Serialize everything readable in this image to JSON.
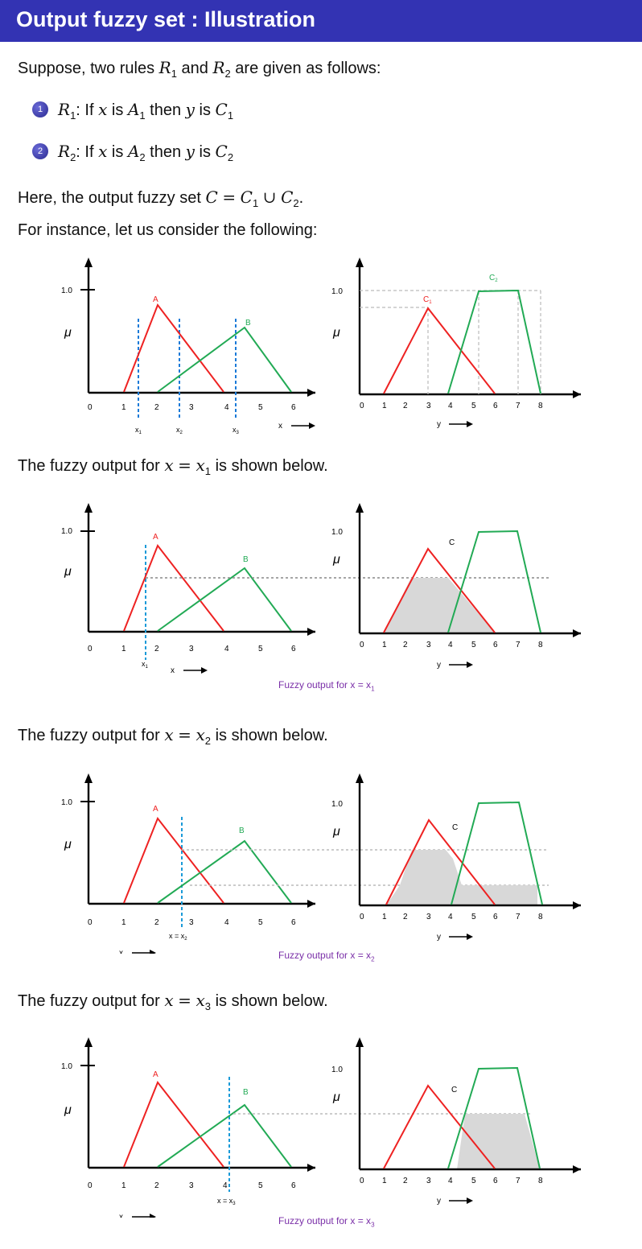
{
  "title": "Output fuzzy set : Illustration",
  "intro": "Suppose, two rules R1 and R2 are given as follows:",
  "rules": [
    {
      "num": "1",
      "rule": "R1: If x is A1 then y is C1"
    },
    {
      "num": "2",
      "rule": "R2: If x is A2 then y is C2"
    }
  ],
  "union_text": "Here, the output fuzzy set C = C1 ∪ C2.",
  "instance_text": "For instance, let us consider the following:",
  "section_x1": "The fuzzy output for x = x1 is shown below.",
  "section_x2": "The fuzzy output for x = x2 is shown below.",
  "section_x3": "The fuzzy output for x = x3 is shown below.",
  "caption_x1": "Fuzzy output for x = x1",
  "caption_x2": "Fuzzy output for x = x2",
  "caption_x3": "Fuzzy output for x = x3",
  "colors": {
    "A": "#ee2222",
    "B": "#22aa55",
    "cut": "#1a9ad8",
    "shade": "#d8d8d8",
    "guide": "#aaaaaa",
    "caption": "#7a2fa8",
    "titlebar": "#3333b3"
  },
  "chart_data": [
    {
      "type": "line",
      "panel": "input-sets",
      "x_ticks": [
        "0",
        "1",
        "2",
        "3",
        "4",
        "5",
        "6"
      ],
      "y_tick": "1.0",
      "ylabel": "μ",
      "xlabel": "x",
      "series": [
        {
          "name": "A",
          "x": [
            1,
            2,
            4
          ],
          "y": [
            0,
            0.8,
            0
          ]
        },
        {
          "name": "B",
          "x": [
            2,
            4.6,
            6
          ],
          "y": [
            0,
            0.6,
            0
          ]
        }
      ],
      "markers": [
        {
          "label": "x1",
          "x": 1.5
        },
        {
          "label": "x2",
          "x": 2.75
        },
        {
          "label": "x3",
          "x": 4.45
        }
      ]
    },
    {
      "type": "line",
      "panel": "output-sets",
      "x_ticks": [
        "0",
        "1",
        "2",
        "3",
        "4",
        "5",
        "6",
        "7",
        "8"
      ],
      "y_tick": "1.0",
      "ylabel": "μ",
      "xlabel": "y",
      "series": [
        {
          "name": "C1",
          "x": [
            1,
            3,
            6
          ],
          "y": [
            0,
            0.8,
            0
          ]
        },
        {
          "name": "C2",
          "x": [
            4,
            5,
            7,
            8
          ],
          "y": [
            0,
            0.97,
            0.98,
            0
          ]
        }
      ]
    }
  ]
}
